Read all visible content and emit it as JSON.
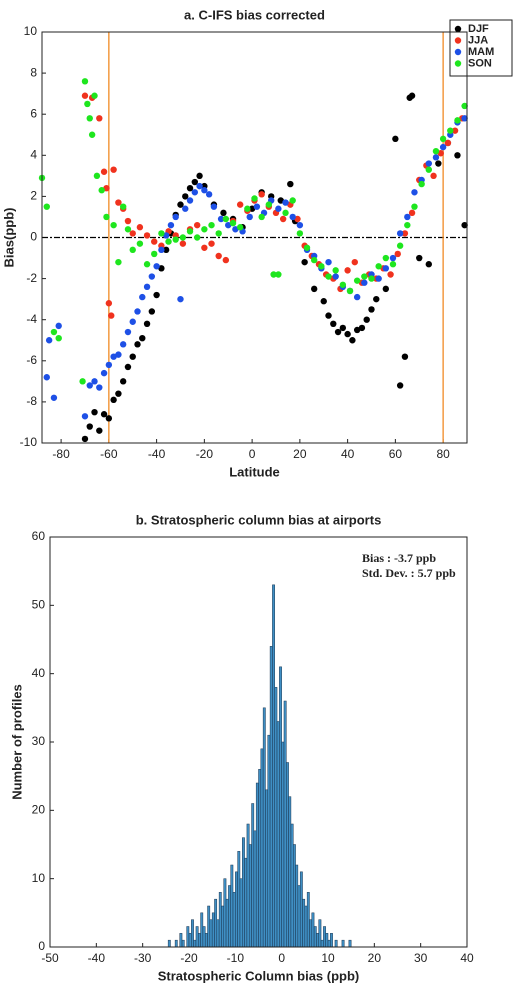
{
  "chart_data": [
    {
      "type": "scatter",
      "title": "a. C-IFS  bias corrected",
      "xlabel": "Latitude",
      "ylabel": "Bias(ppb)",
      "xlim": [
        -88,
        90
      ],
      "xticks": [
        -80,
        -60,
        -40,
        -20,
        0,
        20,
        40,
        60,
        80
      ],
      "ylim": [
        -10,
        10
      ],
      "yticks": [
        -10,
        -8,
        -6,
        -4,
        -2,
        0,
        2,
        4,
        6,
        8,
        10
      ],
      "vlines": [
        -60,
        80
      ],
      "vline_color": "#f08a24",
      "hline": 0,
      "legend": "upper right",
      "series": [
        {
          "name": "DJF",
          "color": "#000000",
          "x": [
            -70,
            -68,
            -66,
            -64,
            -62,
            -60,
            -58,
            -56,
            -54,
            -52,
            -50,
            -48,
            -46,
            -44,
            -42,
            -40,
            -38,
            -36,
            -34,
            -32,
            -30,
            -28,
            -26,
            -24,
            -22,
            -20,
            -16,
            -12,
            -8,
            -4,
            0,
            4,
            8,
            12,
            16,
            18,
            22,
            26,
            30,
            32,
            34,
            36,
            38,
            40,
            42,
            44,
            46,
            48,
            50,
            52,
            56,
            60,
            62,
            64,
            66,
            67,
            70,
            74,
            78,
            82,
            86,
            89
          ],
          "values": [
            -9.8,
            -9.2,
            -8.5,
            -9.4,
            -8.6,
            -8.8,
            -7.9,
            -7.6,
            -7.0,
            -6.3,
            -5.8,
            -5.2,
            -4.9,
            -4.2,
            -3.6,
            -2.8,
            -1.5,
            -0.6,
            0.2,
            1.1,
            1.6,
            2.0,
            2.4,
            2.7,
            3.0,
            2.5,
            1.6,
            1.2,
            0.9,
            0.5,
            1.4,
            2.2,
            2.0,
            1.8,
            2.6,
            0.8,
            -1.2,
            -2.5,
            -3.1,
            -3.8,
            -4.2,
            -4.6,
            -4.4,
            -4.7,
            -5.0,
            -4.5,
            -4.4,
            -4.0,
            -3.5,
            -3.0,
            -2.5,
            4.8,
            -7.2,
            -5.8,
            6.8,
            6.9,
            -1.0,
            -1.3,
            3.6,
            4.6,
            4.0,
            0.6
          ]
        },
        {
          "name": "JJA",
          "color": "#f0321e",
          "x": [
            -70,
            -67,
            -64,
            -62,
            -61,
            -60,
            -59,
            -58,
            -56,
            -54,
            -52,
            -50,
            -47,
            -44,
            -41,
            -38,
            -35,
            -32,
            -29,
            -26,
            -23,
            -20,
            -17,
            -14,
            -11,
            -8,
            -5,
            -2,
            1,
            4,
            7,
            10,
            13,
            16,
            19,
            22,
            25,
            28,
            31,
            34,
            37,
            40,
            43,
            46,
            49,
            52,
            55,
            58,
            61,
            64,
            67,
            70,
            73,
            76,
            79,
            82,
            85,
            88
          ],
          "values": [
            6.9,
            6.8,
            5.8,
            3.2,
            2.4,
            -3.2,
            -3.8,
            3.3,
            1.7,
            1.4,
            0.8,
            0.2,
            0.5,
            0.1,
            -0.2,
            -0.4,
            0.3,
            0.1,
            -0.3,
            0.4,
            0.6,
            -0.5,
            -0.3,
            -0.9,
            -1.1,
            0.8,
            1.6,
            1.3,
            1.8,
            2.1,
            1.5,
            1.2,
            0.9,
            1.6,
            0.9,
            -0.4,
            -0.9,
            -1.3,
            -1.8,
            -2.0,
            -2.5,
            -1.6,
            -1.2,
            -2.2,
            -1.8,
            -2.0,
            -1.5,
            -1.8,
            -0.8,
            0.2,
            1.2,
            2.8,
            3.5,
            3.0,
            4.1,
            4.6,
            5.2,
            5.8
          ]
        },
        {
          "name": "MAM",
          "color": "#1e50e6",
          "x": [
            -86,
            -85,
            -83,
            -81,
            -70,
            -68,
            -66,
            -64,
            -62,
            -60,
            -58,
            -56,
            -54,
            -52,
            -50,
            -48,
            -46,
            -44,
            -42,
            -40,
            -38,
            -36,
            -34,
            -32,
            -30,
            -28,
            -26,
            -24,
            -22,
            -20,
            -18,
            -16,
            -13,
            -10,
            -7,
            -4,
            -1,
            2,
            5,
            8,
            11,
            14,
            17,
            20,
            23,
            26,
            29,
            32,
            35,
            38,
            41,
            44,
            47,
            50,
            53,
            56,
            59,
            62,
            65,
            68,
            71,
            74,
            77,
            80,
            83,
            86,
            89
          ],
          "values": [
            -6.8,
            -5.0,
            -7.8,
            -4.3,
            -8.7,
            -7.2,
            -7.0,
            -7.3,
            -6.6,
            -6.2,
            -5.8,
            -5.7,
            -5.2,
            -4.6,
            -4.1,
            -3.6,
            -2.9,
            -2.4,
            -1.9,
            -1.4,
            -0.6,
            0.1,
            0.6,
            1.0,
            -3.0,
            1.4,
            1.8,
            2.2,
            2.5,
            2.3,
            2.1,
            1.5,
            0.9,
            0.6,
            0.4,
            0.3,
            1.0,
            1.5,
            1.2,
            1.8,
            1.4,
            1.7,
            1.0,
            0.6,
            -0.6,
            -0.9,
            -1.5,
            -1.2,
            -1.9,
            -2.4,
            -2.6,
            -2.9,
            -2.2,
            -1.8,
            -2.0,
            -1.5,
            -1.0,
            0.2,
            1.0,
            2.2,
            2.8,
            3.6,
            3.9,
            4.4,
            5.0,
            5.6,
            5.8
          ]
        },
        {
          "name": "SON",
          "color": "#1ee61e",
          "x": [
            -88,
            -86,
            -83,
            -81,
            -71,
            -70,
            -69,
            -68,
            -67,
            -66,
            -65,
            -63,
            -61,
            -58,
            -56,
            -54,
            -52,
            -50,
            -47,
            -44,
            -41,
            -38,
            -35,
            -32,
            -29,
            -26,
            -23,
            -20,
            -17,
            -14,
            -11,
            -8,
            -5,
            -2,
            1,
            4,
            7,
            9,
            11,
            14,
            17,
            20,
            23,
            26,
            29,
            32,
            35,
            38,
            41,
            44,
            47,
            50,
            53,
            56,
            59,
            62,
            65,
            68,
            71,
            74,
            77,
            80,
            83,
            86,
            89
          ],
          "values": [
            2.9,
            1.5,
            -4.6,
            -4.9,
            -7.0,
            7.6,
            6.5,
            5.8,
            5.0,
            6.9,
            3.0,
            2.3,
            1.0,
            0.6,
            -1.2,
            1.5,
            0.4,
            -0.6,
            -0.3,
            -1.3,
            -0.8,
            0.2,
            -0.2,
            -0.1,
            0.0,
            0.3,
            0.0,
            0.4,
            0.6,
            0.2,
            0.9,
            0.7,
            0.5,
            1.4,
            1.9,
            1.0,
            1.6,
            -1.8,
            -1.8,
            1.2,
            1.8,
            0.2,
            -0.5,
            -1.1,
            -1.4,
            -1.9,
            -1.6,
            -2.3,
            -2.6,
            -2.1,
            -1.9,
            -2.0,
            -1.4,
            -1.0,
            -1.3,
            -0.4,
            0.6,
            1.5,
            2.6,
            3.3,
            4.2,
            4.8,
            5.2,
            5.7,
            6.4
          ]
        }
      ]
    },
    {
      "type": "histogram",
      "title": "b. Stratospheric column bias at airports",
      "xlabel": "Stratospheric Column bias (ppb)",
      "ylabel": "Number of profiles",
      "xlim": [
        -50,
        40
      ],
      "xticks": [
        -50,
        -40,
        -30,
        -20,
        -10,
        0,
        10,
        20,
        30,
        40
      ],
      "ylim": [
        0,
        60
      ],
      "yticks": [
        0,
        10,
        20,
        30,
        40,
        50,
        60
      ],
      "color": "#3f8fc4",
      "edgecolor": "#1a3550",
      "annotations": [
        "Bias : -3.7 ppb",
        "Std. Dev. : 5.7 ppb"
      ],
      "bins": [
        -25,
        -24.5,
        -24,
        -23.5,
        -23,
        -22.5,
        -22,
        -21.5,
        -21,
        -20.5,
        -20,
        -19.5,
        -19,
        -18.5,
        -18,
        -17.5,
        -17,
        -16.5,
        -16,
        -15.5,
        -15,
        -14.5,
        -14,
        -13.5,
        -13,
        -12.5,
        -12,
        -11.5,
        -11,
        -10.5,
        -10,
        -9.5,
        -9,
        -8.5,
        -8,
        -7.5,
        -7,
        -6.5,
        -6,
        -5.5,
        -5,
        -4.5,
        -4,
        -3.5,
        -3,
        -2.5,
        -2,
        -1.5,
        -1,
        -0.5,
        0,
        0.5,
        1,
        1.5,
        2,
        2.5,
        3,
        3.5,
        4,
        4.5,
        5,
        5.5,
        6,
        6.5,
        7,
        7.5,
        8,
        8.5,
        9,
        9.5,
        10,
        10.5,
        11,
        11.5,
        12,
        12.5,
        13,
        13.5,
        14,
        14.5,
        15
      ],
      "values": [
        0,
        1,
        0,
        0,
        1,
        0,
        2,
        1,
        0,
        3,
        2,
        4,
        1,
        3,
        2,
        5,
        3,
        2,
        6,
        4,
        5,
        7,
        4,
        8,
        6,
        10,
        7,
        9,
        12,
        8,
        11,
        14,
        10,
        16,
        13,
        18,
        15,
        21,
        17,
        24,
        26,
        29,
        35,
        23,
        31,
        44,
        53,
        38,
        33,
        41,
        30,
        36,
        27,
        22,
        18,
        15,
        12,
        9,
        11,
        7,
        6,
        8,
        4,
        5,
        3,
        2,
        4,
        1,
        3,
        2,
        1,
        2,
        0,
        1,
        0,
        0,
        1,
        0,
        0,
        1
      ]
    }
  ]
}
